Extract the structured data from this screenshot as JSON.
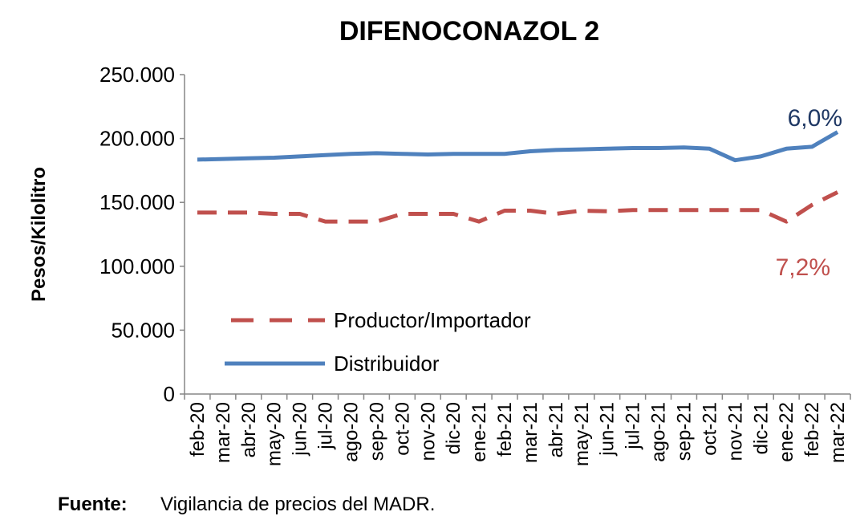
{
  "chart_data": {
    "type": "line",
    "title": "DIFENOCONAZOL 2",
    "y_label": "Pesos/Kilolitro",
    "categories": [
      "feb-20",
      "mar-20",
      "abr-20",
      "may-20",
      "jun-20",
      "jul-20",
      "ago-20",
      "sep-20",
      "oct-20",
      "nov-20",
      "dic-20",
      "ene-21",
      "feb-21",
      "mar-21",
      "abr-21",
      "may-21",
      "jun-21",
      "jul-21",
      "ago-21",
      "sep-21",
      "oct-21",
      "nov-21",
      "dic-21",
      "ene-22",
      "feb-22",
      "mar-22"
    ],
    "series": [
      {
        "name": "Productor/Importador",
        "color": "#c0504d",
        "dashed": true,
        "values": [
          142000,
          142000,
          142000,
          141000,
          141000,
          135000,
          135000,
          135000,
          141000,
          141000,
          141000,
          135000,
          143500,
          143500,
          141000,
          143500,
          143000,
          144000,
          144000,
          144000,
          144000,
          144000,
          144000,
          135000,
          148000,
          158000
        ]
      },
      {
        "name": "Distribuidor",
        "color": "#4f81bd",
        "dashed": false,
        "values": [
          183500,
          184000,
          184500,
          185000,
          186000,
          187000,
          188000,
          188500,
          188000,
          187500,
          188000,
          188000,
          188000,
          190000,
          191000,
          191500,
          192000,
          192500,
          192500,
          193000,
          192000,
          183000,
          186000,
          192000,
          193500,
          205000
        ]
      }
    ],
    "annotations": [
      {
        "text": "6,0%",
        "color": "#1f3864"
      },
      {
        "text": "7,2%",
        "color": "#c0504d"
      }
    ],
    "ylim": [
      0,
      250000
    ],
    "yticks": [
      0,
      {
        "value": 50000,
        "label": "50.000"
      },
      {
        "value": 100000,
        "label": "100.000"
      },
      {
        "value": 150000,
        "label": "150.000"
      },
      {
        "value": 200000,
        "label": "200.000"
      },
      {
        "value": 250000,
        "label": "250.000"
      }
    ],
    "grid": false,
    "legend": "lower left",
    "source_label": "Fuente:",
    "source": "Vigilancia de precios del MADR."
  }
}
